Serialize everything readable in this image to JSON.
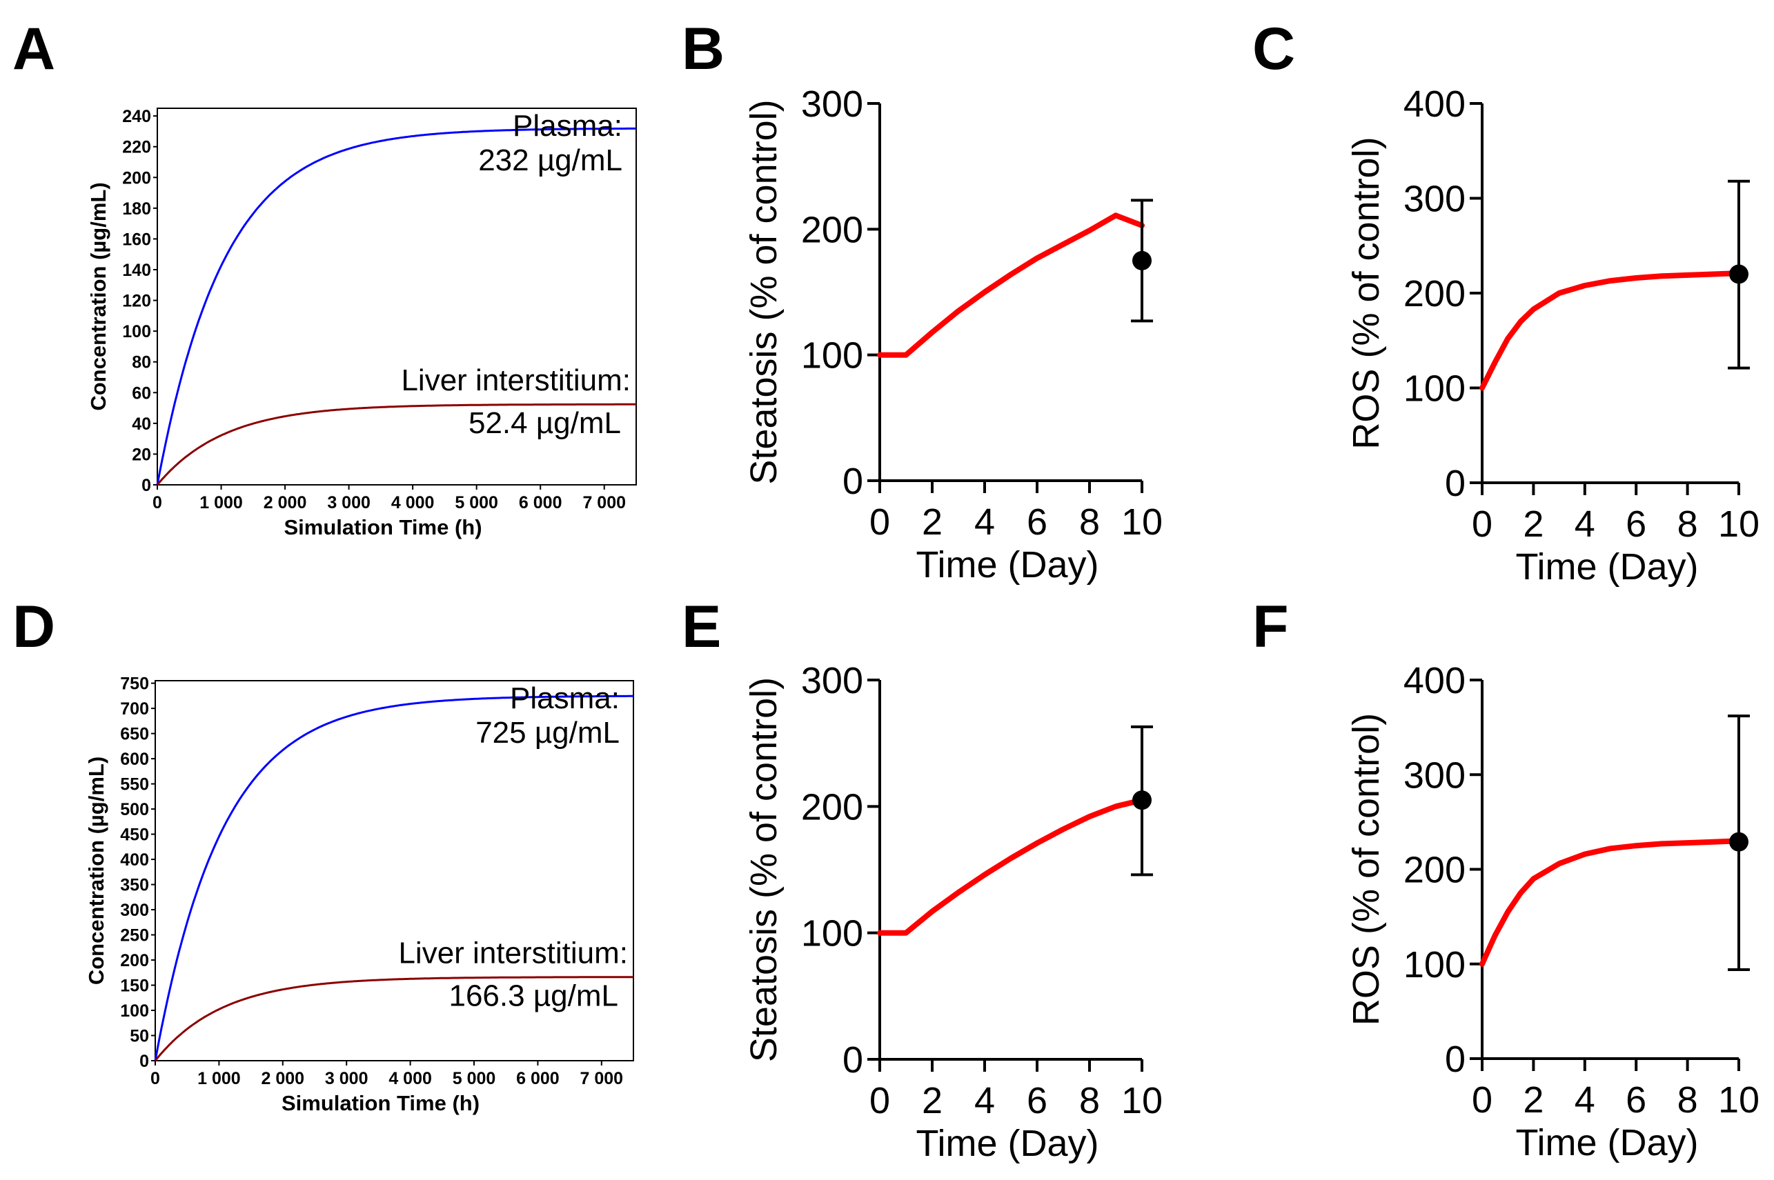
{
  "panels": [
    {
      "letter": "A",
      "type": "line",
      "title": "",
      "xlabel": "Simulation Time (h)",
      "ylabel": "Concentration (µg/mL)",
      "xlim": [
        0,
        7500
      ],
      "ylim": [
        0,
        245
      ],
      "xticks": [
        0,
        1000,
        2000,
        3000,
        4000,
        5000,
        6000,
        7000
      ],
      "xtick_labels": [
        "0",
        "1 000",
        "2 000",
        "3 000",
        "4 000",
        "5 000",
        "6 000",
        "7 000"
      ],
      "yticks": [
        0,
        20,
        40,
        60,
        80,
        100,
        120,
        140,
        160,
        180,
        200,
        220,
        240
      ],
      "series": [
        {
          "name": "Plasma",
          "color": "#0000ff",
          "plateau": 232,
          "tau": 1050,
          "label_top": "Plasma:",
          "label_bottom": "232 µg/mL"
        },
        {
          "name": "Liver interstitium",
          "color": "#8b0000",
          "plateau": 52.4,
          "tau": 1050,
          "label_top": "Liver interstitium:",
          "label_bottom": "52.4 µg/mL"
        }
      ]
    },
    {
      "letter": "B",
      "type": "line",
      "xlabel": "Time (Day)",
      "ylabel": "Steatosis  (% of control)",
      "xlim": [
        0,
        10
      ],
      "ylim": [
        0,
        300
      ],
      "xticks": [
        0,
        2,
        4,
        6,
        8,
        10
      ],
      "yticks": [
        0,
        100,
        200,
        300
      ],
      "line": {
        "color": "#ff0000",
        "x": [
          0,
          1,
          2,
          3,
          4,
          5,
          6,
          7,
          8,
          9,
          10
        ],
        "y": [
          100,
          100,
          118,
          135,
          150,
          164,
          177,
          188,
          199,
          211,
          203
        ]
      },
      "point": {
        "x": 10,
        "y": 175,
        "err_low": 127,
        "err_high": 223,
        "color": "#000000"
      }
    },
    {
      "letter": "C",
      "type": "line",
      "xlabel": "Time (Day)",
      "ylabel": "ROS  (% of control)",
      "xlim": [
        0,
        10
      ],
      "ylim": [
        0,
        400
      ],
      "xticks": [
        0,
        2,
        4,
        6,
        8,
        10
      ],
      "yticks": [
        0,
        100,
        200,
        300,
        400
      ],
      "line": {
        "color": "#ff0000",
        "x": [
          0,
          0.5,
          1,
          1.5,
          2,
          3,
          4,
          5,
          6,
          7,
          8,
          9,
          10
        ],
        "y": [
          100,
          127,
          152,
          170,
          183,
          200,
          208,
          213,
          216,
          218,
          219,
          220,
          221
        ]
      },
      "point": {
        "x": 10,
        "y": 220,
        "err_low": 121,
        "err_high": 318,
        "color": "#000000"
      }
    },
    {
      "letter": "D",
      "type": "line",
      "title": "",
      "xlabel": "Simulation Time (h)",
      "ylabel": "Concentration (µg/mL)",
      "xlim": [
        0,
        7500
      ],
      "ylim": [
        0,
        755
      ],
      "xticks": [
        0,
        1000,
        2000,
        3000,
        4000,
        5000,
        6000,
        7000
      ],
      "xtick_labels": [
        "0",
        "1 000",
        "2 000",
        "3 000",
        "4 000",
        "5 000",
        "6 000",
        "7 000"
      ],
      "yticks": [
        0,
        50,
        100,
        150,
        200,
        250,
        300,
        350,
        400,
        450,
        500,
        550,
        600,
        650,
        700,
        750
      ],
      "series": [
        {
          "name": "Plasma",
          "color": "#0000ff",
          "plateau": 725,
          "tau": 1050,
          "label_top": "Plasma:",
          "label_bottom": "725 µg/mL"
        },
        {
          "name": "Liver interstitium",
          "color": "#8b0000",
          "plateau": 166.3,
          "tau": 1050,
          "label_top": "Liver interstitium:",
          "label_bottom": "166.3 µg/mL"
        }
      ]
    },
    {
      "letter": "E",
      "type": "line",
      "xlabel": "Time (Day)",
      "ylabel": "Steatosis  (% of control)",
      "xlim": [
        0,
        10
      ],
      "ylim": [
        0,
        300
      ],
      "xticks": [
        0,
        2,
        4,
        6,
        8,
        10
      ],
      "yticks": [
        0,
        100,
        200,
        300
      ],
      "line": {
        "color": "#ff0000",
        "x": [
          0,
          1,
          2,
          3,
          4,
          5,
          6,
          7,
          8,
          9,
          10
        ],
        "y": [
          100,
          100,
          117,
          132,
          146,
          159,
          171,
          182,
          192,
          200,
          205
        ]
      },
      "point": {
        "x": 10,
        "y": 205,
        "err_low": 146,
        "err_high": 263,
        "color": "#000000"
      }
    },
    {
      "letter": "F",
      "type": "line",
      "xlabel": "Time (Day)",
      "ylabel": "ROS  (% of control)",
      "xlim": [
        0,
        10
      ],
      "ylim": [
        0,
        400
      ],
      "xticks": [
        0,
        2,
        4,
        6,
        8,
        10
      ],
      "yticks": [
        0,
        100,
        200,
        300,
        400
      ],
      "line": {
        "color": "#ff0000",
        "x": [
          0,
          0.5,
          1,
          1.5,
          2,
          3,
          4,
          5,
          6,
          7,
          8,
          9,
          10
        ],
        "y": [
          100,
          130,
          155,
          175,
          190,
          206,
          216,
          222,
          225,
          227,
          228,
          229,
          230
        ]
      },
      "point": {
        "x": 10,
        "y": 229,
        "err_low": 94,
        "err_high": 362,
        "color": "#000000"
      }
    }
  ]
}
